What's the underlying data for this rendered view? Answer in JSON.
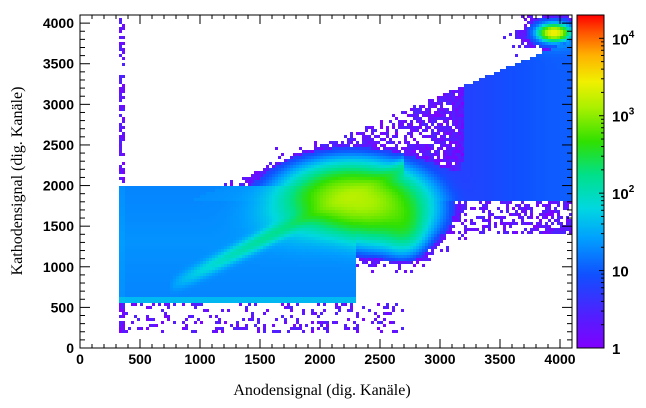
{
  "chart_data": {
    "type": "heatmap",
    "title": "",
    "xlabel": "Anodensignal (dig. Kanäle)",
    "ylabel": "Kathodensignal (dig. Kanäle)",
    "xlim": [
      0,
      4100
    ],
    "ylim": [
      0,
      4100
    ],
    "x_ticks": [
      "0",
      "500",
      "1000",
      "1500",
      "2000",
      "2500",
      "3000",
      "3500",
      "4000"
    ],
    "y_ticks": [
      "0",
      "500",
      "1000",
      "1500",
      "2000",
      "2500",
      "3000",
      "3500",
      "4000"
    ],
    "z_scale": "log",
    "z_range": [
      1,
      20000
    ],
    "colorbar_labels": [
      {
        "base": "1",
        "exp": "",
        "value": 1
      },
      {
        "base": "10",
        "exp": "",
        "value": 10
      },
      {
        "base": "10",
        "exp": "2",
        "value": 100
      },
      {
        "base": "10",
        "exp": "3",
        "value": 1000
      },
      {
        "base": "10",
        "exp": "4",
        "value": 10000
      }
    ],
    "features": [
      {
        "name": "low band",
        "x": [
          330,
          2300
        ],
        "y": [
          560,
          2000
        ],
        "counts": 30
      },
      {
        "name": "upper spread",
        "x": [
          330,
          4000
        ],
        "y": [
          1400,
          3800
        ],
        "counts": 3
      },
      {
        "name": "main ridge",
        "x": [
          740,
          2780
        ],
        "y": [
          750,
          2300
        ],
        "counts": 300
      },
      {
        "name": "peak",
        "x": [
          2000,
          2400
        ],
        "y": [
          1650,
          2100
        ],
        "counts": 1500
      },
      {
        "name": "corner spot",
        "x": [
          3880,
          4020
        ],
        "y": [
          3830,
          3920
        ],
        "counts": 3000
      }
    ]
  }
}
